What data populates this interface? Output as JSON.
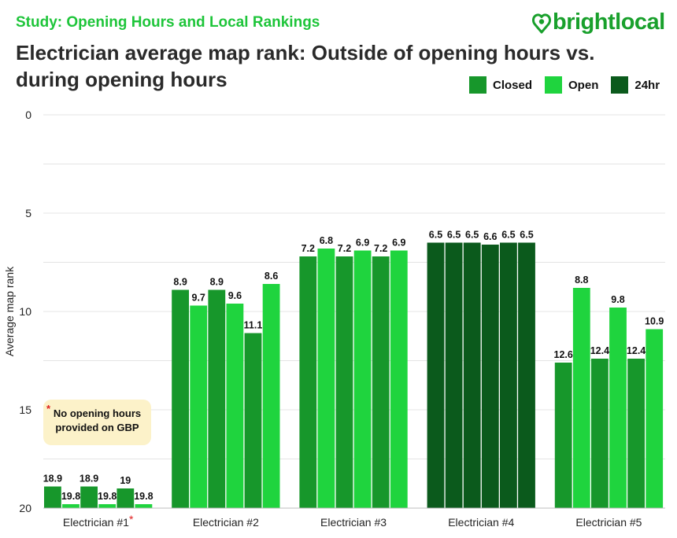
{
  "header": {
    "study": "Study: Opening Hours and Local Rankings",
    "title_line1": "Electrician average map rank: Outside of opening hours vs.",
    "title_line2": "during opening hours"
  },
  "logo": {
    "text": "brightlocal",
    "icon": "heart-location-pin-icon"
  },
  "legend": [
    {
      "label": "Closed",
      "color": "#17972b"
    },
    {
      "label": "Open",
      "color": "#1fd43e"
    },
    {
      "label": "24hr",
      "color": "#0b5a1c"
    }
  ],
  "note": {
    "star": "*",
    "text": "No opening hours provided on GBP"
  },
  "chart_data": {
    "type": "bar",
    "title": "Electrician average map rank: Outside of opening hours vs. during opening hours",
    "ylabel": "Average map rank",
    "xlabel": "",
    "ylim": [
      0,
      20
    ],
    "y_inverted": true,
    "y_ticks": [
      0,
      5,
      10,
      15,
      20
    ],
    "categories": [
      "Electrician #1",
      "Electrician #2",
      "Electrician #3",
      "Electrician #4",
      "Electrician #5"
    ],
    "category_markers": [
      "*",
      "",
      "",
      "",
      ""
    ],
    "groups": [
      {
        "category": "Electrician #1",
        "bars": [
          {
            "type": "Closed",
            "value": 18.9,
            "label": "18.9"
          },
          {
            "type": "Open",
            "value": 19.8,
            "label": "19.8"
          },
          {
            "type": "Closed",
            "value": 18.9,
            "label": "18.9"
          },
          {
            "type": "Open",
            "value": 19.8,
            "label": "19.8"
          },
          {
            "type": "Closed",
            "value": 19.0,
            "label": "19"
          },
          {
            "type": "Open",
            "value": 19.8,
            "label": "19.8"
          }
        ]
      },
      {
        "category": "Electrician #2",
        "bars": [
          {
            "type": "Closed",
            "value": 8.9,
            "label": "8.9"
          },
          {
            "type": "Open",
            "value": 9.7,
            "label": "9.7"
          },
          {
            "type": "Closed",
            "value": 8.9,
            "label": "8.9"
          },
          {
            "type": "Open",
            "value": 9.6,
            "label": "9.6"
          },
          {
            "type": "Closed",
            "value": 11.1,
            "label": "11.1"
          },
          {
            "type": "Open",
            "value": 8.6,
            "label": "8.6"
          }
        ]
      },
      {
        "category": "Electrician #3",
        "bars": [
          {
            "type": "Closed",
            "value": 7.2,
            "label": "7.2"
          },
          {
            "type": "Open",
            "value": 6.8,
            "label": "6.8"
          },
          {
            "type": "Closed",
            "value": 7.2,
            "label": "7.2"
          },
          {
            "type": "Open",
            "value": 6.9,
            "label": "6.9"
          },
          {
            "type": "Closed",
            "value": 7.2,
            "label": "7.2"
          },
          {
            "type": "Open",
            "value": 6.9,
            "label": "6.9"
          }
        ]
      },
      {
        "category": "Electrician #4",
        "bars": [
          {
            "type": "24hr",
            "value": 6.5,
            "label": "6.5"
          },
          {
            "type": "24hr",
            "value": 6.5,
            "label": "6.5"
          },
          {
            "type": "24hr",
            "value": 6.5,
            "label": "6.5"
          },
          {
            "type": "24hr",
            "value": 6.6,
            "label": "6.6"
          },
          {
            "type": "24hr",
            "value": 6.5,
            "label": "6.5"
          },
          {
            "type": "24hr",
            "value": 6.5,
            "label": "6.5"
          }
        ]
      },
      {
        "category": "Electrician #5",
        "bars": [
          {
            "type": "Closed",
            "value": 12.6,
            "label": "12.6"
          },
          {
            "type": "Open",
            "value": 8.8,
            "label": "8.8"
          },
          {
            "type": "Closed",
            "value": 12.4,
            "label": "12.4"
          },
          {
            "type": "Open",
            "value": 9.8,
            "label": "9.8"
          },
          {
            "type": "Closed",
            "value": 12.4,
            "label": "12.4"
          },
          {
            "type": "Open",
            "value": 10.9,
            "label": "10.9"
          }
        ]
      }
    ]
  }
}
